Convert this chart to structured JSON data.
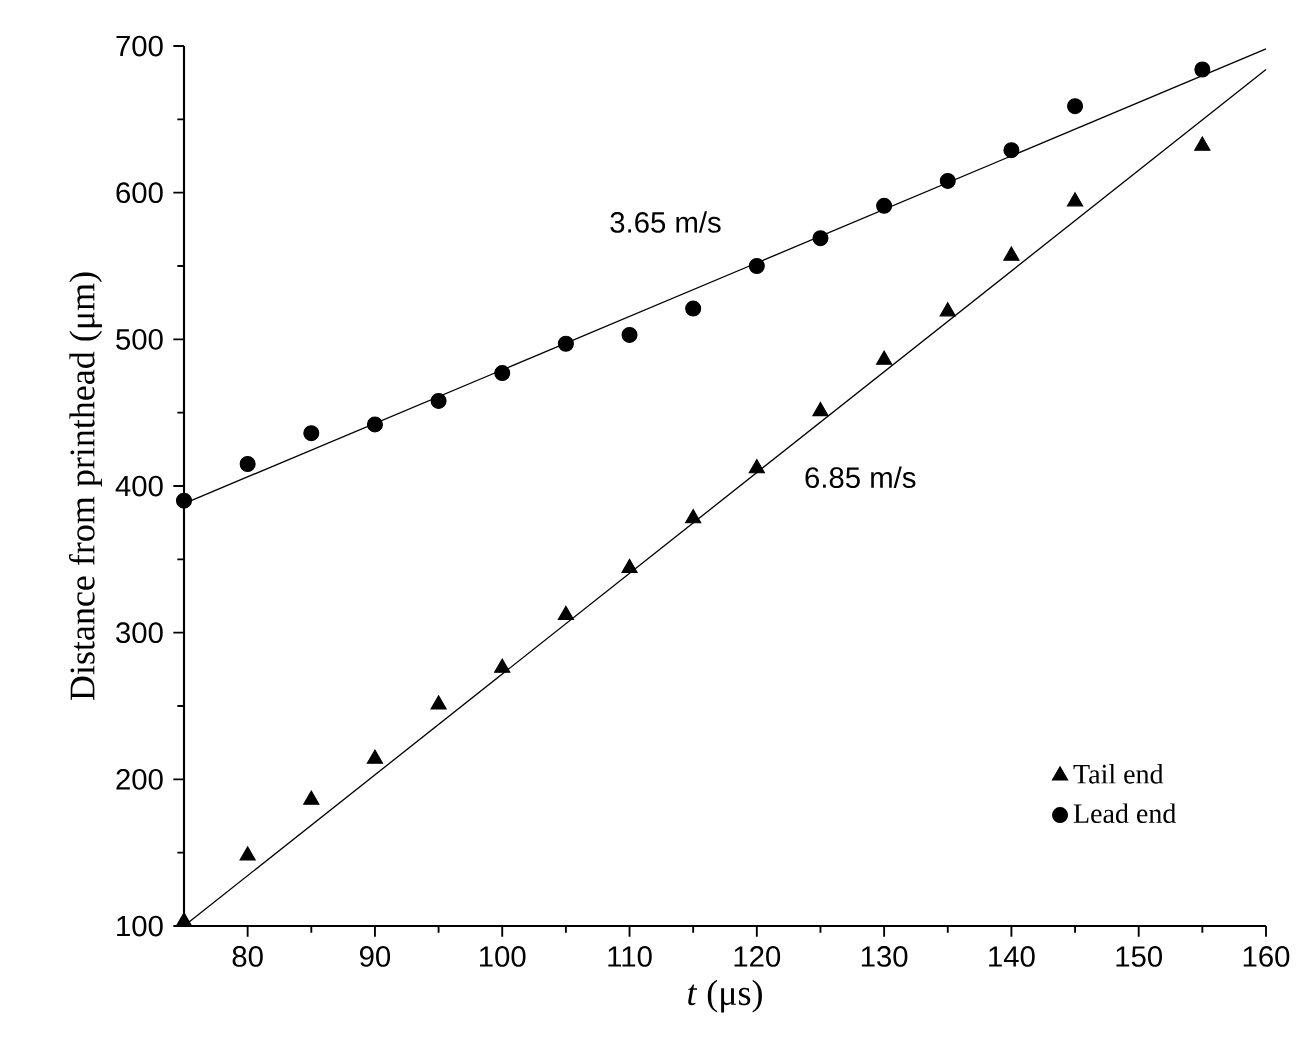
{
  "chart_data": {
    "type": "scatter",
    "xlabel": "*t* (μs)",
    "ylabel": "Distance from printhead (μm)",
    "xlim": [
      75,
      160
    ],
    "ylim": [
      100,
      700
    ],
    "xticks": [
      80,
      90,
      100,
      110,
      120,
      130,
      140,
      150,
      160
    ],
    "yticks": [
      100,
      200,
      300,
      400,
      500,
      600,
      700
    ],
    "legend": "bottom right",
    "series": [
      {
        "name": "Tail end",
        "marker": "triangle",
        "color": "#000000",
        "x": [
          75,
          80,
          85,
          90,
          95,
          100,
          105,
          110,
          115,
          120,
          125,
          130,
          135,
          140,
          145,
          155
        ],
        "values": [
          103,
          148,
          186,
          214,
          251,
          276,
          312,
          344,
          378,
          412,
          451,
          486,
          519,
          557,
          594,
          632
        ]
      },
      {
        "name": "Lead end",
        "marker": "circle",
        "color": "#000000",
        "x": [
          75,
          80,
          85,
          90,
          95,
          100,
          105,
          110,
          115,
          120,
          125,
          130,
          135,
          140,
          145,
          155
        ],
        "values": [
          390,
          415,
          436,
          442,
          458,
          477,
          497,
          503,
          521,
          550,
          569,
          591,
          608,
          629,
          659,
          684
        ]
      },
      {
        "type": "line",
        "marker": "none",
        "color": "#000000",
        "x": [
          75,
          160
        ],
        "values": [
          100,
          684
        ]
      },
      {
        "type": "line",
        "marker": "none",
        "color": "#000000",
        "x": [
          75,
          160
        ],
        "values": [
          388,
          698
        ]
      }
    ],
    "annotations": [
      "3.65 m/s",
      "6.85 m/s"
    ]
  }
}
